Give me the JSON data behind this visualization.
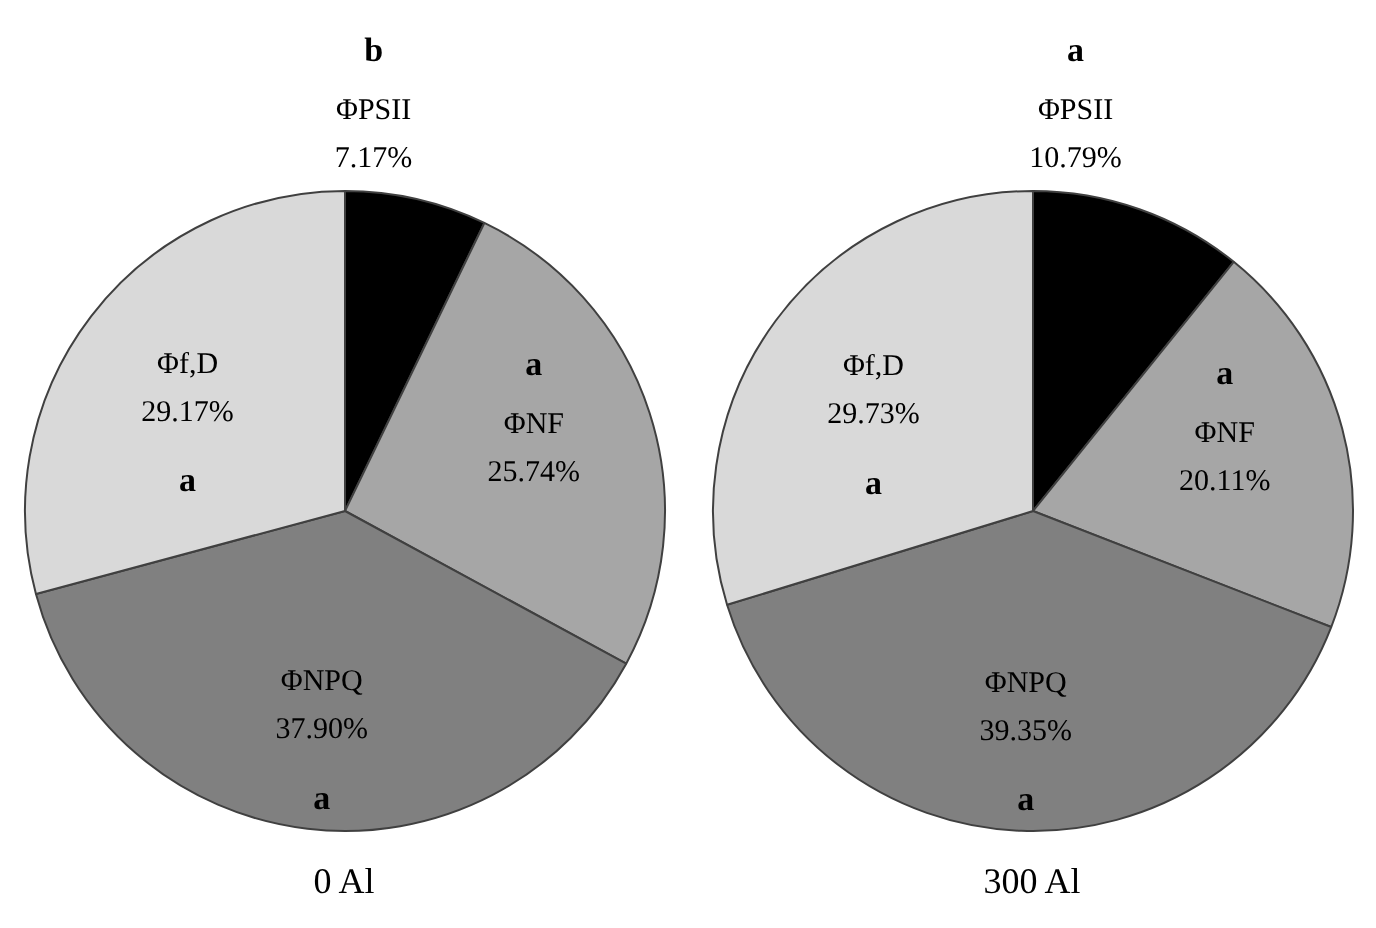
{
  "chart_data": [
    {
      "type": "pie",
      "title": "0 Al",
      "categories": [
        "ΦPSII",
        "ΦNF",
        "ΦNPQ",
        "Φf,D"
      ],
      "values": [
        7.17,
        25.74,
        37.9,
        29.17
      ],
      "colors": [
        "#000000",
        "#a6a6a6",
        "#808080",
        "#d9d9d9"
      ],
      "value_labels": [
        "7.17%",
        "25.74%",
        "37.90%",
        "29.17%"
      ],
      "annotations": [
        {
          "text": "b",
          "x": "ΦPSII"
        },
        {
          "text": "a",
          "x": "ΦNF"
        },
        {
          "text": "a",
          "x": "ΦNPQ"
        },
        {
          "text": "a",
          "x": "Φf,D"
        }
      ]
    },
    {
      "type": "pie",
      "title": "300 Al",
      "categories": [
        "ΦPSII",
        "ΦNF",
        "ΦNPQ",
        "Φf,D"
      ],
      "values": [
        10.79,
        20.11,
        39.35,
        29.73
      ],
      "colors": [
        "#000000",
        "#a6a6a6",
        "#808080",
        "#d9d9d9"
      ],
      "value_labels": [
        "10.79%",
        "20.11%",
        "39.35%",
        "29.73%"
      ],
      "annotations": [
        {
          "text": "a",
          "x": "ΦPSII"
        },
        {
          "text": "a",
          "x": "ΦNF"
        },
        {
          "text": "a",
          "x": "ΦNPQ"
        },
        {
          "text": "a",
          "x": "Φf,D"
        }
      ]
    }
  ]
}
